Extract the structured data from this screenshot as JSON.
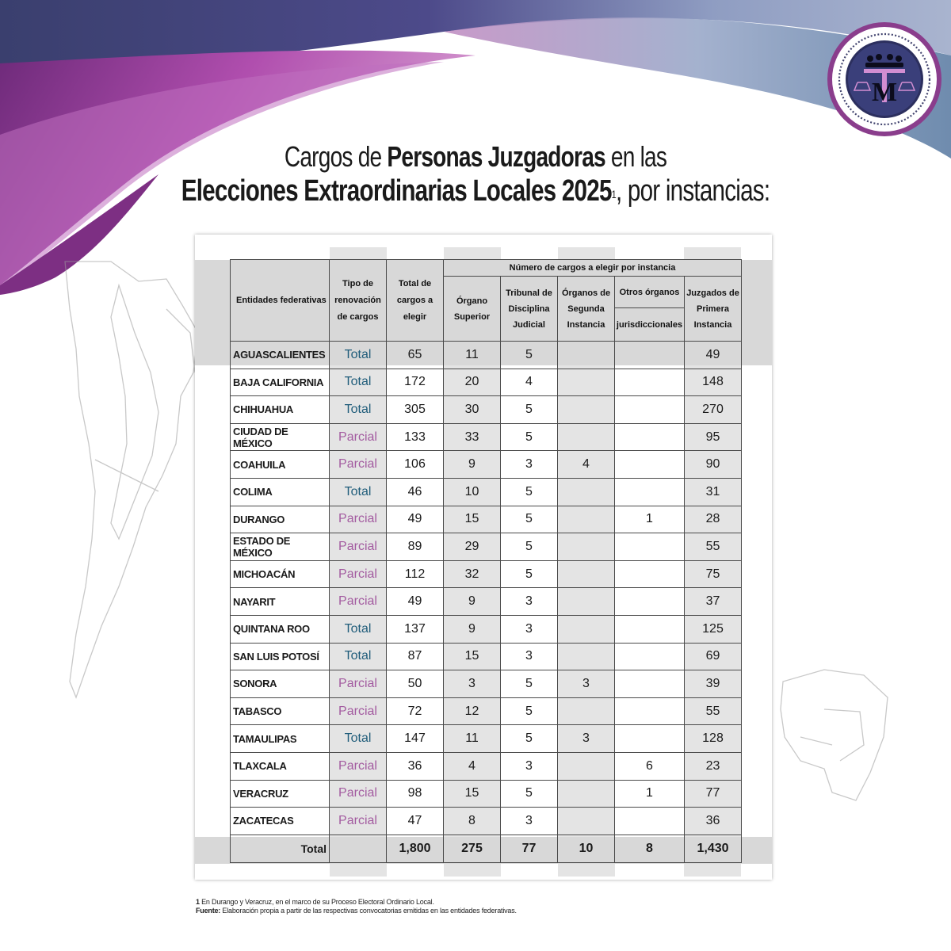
{
  "title": {
    "line1_pre": "Cargos de ",
    "line1_bold": "Personas Juzgadoras",
    "line1_post": " en las",
    "line2_bold": "Elecciones Extraordinarias Locales 2025",
    "line2_sup": "1",
    "line2_post": ", por instancias:"
  },
  "logo": {
    "ring_text": "Asociación de Magistradas y Magistrados Electorales Locales de los Estados Unidos Mexicanos",
    "monogram": "TM"
  },
  "colors": {
    "total": "#1f5c7a",
    "parcial": "#a35ba0",
    "purple": "#8a3d8c",
    "navy": "#2c2f5e"
  },
  "table": {
    "headers": {
      "entidades": "Entidades federativas",
      "tipo": "Tipo de renovación de cargos",
      "total": "Total de cargos a elegir",
      "group": "Número de cargos a elegir por instancia",
      "organo_superior": "Órgano Superior",
      "tribunal": "Tribunal de Disciplina Judicial",
      "segunda": "Órganos de Segunda Instancia",
      "otros": "Otros órganos",
      "otros_sub": "jurisdiccionales",
      "juzgados": "Juzgados de Primera Instancia"
    },
    "rows": [
      {
        "entidad": "AGUASCALIENTES",
        "tipo": "Total",
        "total": "65",
        "superior": "11",
        "tribunal": "5",
        "segunda": "",
        "otros": "",
        "juzgados": "49"
      },
      {
        "entidad": "BAJA CALIFORNIA",
        "tipo": "Total",
        "total": "172",
        "superior": "20",
        "tribunal": "4",
        "segunda": "",
        "otros": "",
        "juzgados": "148"
      },
      {
        "entidad": "CHIHUAHUA",
        "tipo": "Total",
        "total": "305",
        "superior": "30",
        "tribunal": "5",
        "segunda": "",
        "otros": "",
        "juzgados": "270"
      },
      {
        "entidad": "CIUDAD DE MÉXICO",
        "tipo": "Parcial",
        "total": "133",
        "superior": "33",
        "tribunal": "5",
        "segunda": "",
        "otros": "",
        "juzgados": "95"
      },
      {
        "entidad": "COAHUILA",
        "tipo": "Parcial",
        "total": "106",
        "superior": "9",
        "tribunal": "3",
        "segunda": "4",
        "otros": "",
        "juzgados": "90"
      },
      {
        "entidad": "COLIMA",
        "tipo": "Total",
        "total": "46",
        "superior": "10",
        "tribunal": "5",
        "segunda": "",
        "otros": "",
        "juzgados": "31"
      },
      {
        "entidad": "DURANGO",
        "tipo": "Parcial",
        "total": "49",
        "superior": "15",
        "tribunal": "5",
        "segunda": "",
        "otros": "1",
        "juzgados": "28"
      },
      {
        "entidad": "ESTADO DE MÉXICO",
        "tipo": "Parcial",
        "total": "89",
        "superior": "29",
        "tribunal": "5",
        "segunda": "",
        "otros": "",
        "juzgados": "55"
      },
      {
        "entidad": "MICHOACÁN",
        "tipo": "Parcial",
        "total": "112",
        "superior": "32",
        "tribunal": "5",
        "segunda": "",
        "otros": "",
        "juzgados": "75"
      },
      {
        "entidad": "NAYARIT",
        "tipo": "Parcial",
        "total": "49",
        "superior": "9",
        "tribunal": "3",
        "segunda": "",
        "otros": "",
        "juzgados": "37"
      },
      {
        "entidad": "QUINTANA ROO",
        "tipo": "Total",
        "total": "137",
        "superior": "9",
        "tribunal": "3",
        "segunda": "",
        "otros": "",
        "juzgados": "125"
      },
      {
        "entidad": "SAN LUIS POTOSÍ",
        "tipo": "Total",
        "total": "87",
        "superior": "15",
        "tribunal": "3",
        "segunda": "",
        "otros": "",
        "juzgados": "69"
      },
      {
        "entidad": "SONORA",
        "tipo": "Parcial",
        "total": "50",
        "superior": "3",
        "tribunal": "5",
        "segunda": "3",
        "otros": "",
        "juzgados": "39"
      },
      {
        "entidad": "TABASCO",
        "tipo": "Parcial",
        "total": "72",
        "superior": "12",
        "tribunal": "5",
        "segunda": "",
        "otros": "",
        "juzgados": "55"
      },
      {
        "entidad": "TAMAULIPAS",
        "tipo": "Total",
        "total": "147",
        "superior": "11",
        "tribunal": "5",
        "segunda": "3",
        "otros": "",
        "juzgados": "128"
      },
      {
        "entidad": "TLAXCALA",
        "tipo": "Parcial",
        "total": "36",
        "superior": "4",
        "tribunal": "3",
        "segunda": "",
        "otros": "6",
        "juzgados": "23"
      },
      {
        "entidad": "VERACRUZ",
        "tipo": "Parcial",
        "total": "98",
        "superior": "15",
        "tribunal": "5",
        "segunda": "",
        "otros": "1",
        "juzgados": "77"
      },
      {
        "entidad": "ZACATECAS",
        "tipo": "Parcial",
        "total": "47",
        "superior": "8",
        "tribunal": "3",
        "segunda": "",
        "otros": "",
        "juzgados": "36"
      }
    ],
    "totals": {
      "label": "Total",
      "total": "1,800",
      "superior": "275",
      "tribunal": "77",
      "segunda": "10",
      "otros": "8",
      "juzgados": "1,430"
    }
  },
  "footnotes": {
    "note_marker": "1",
    "note_text": " En Durango y Veracruz, en el marco de su Proceso Electoral Ordinario Local.",
    "source_label": "Fuente:",
    "source_text": " Elaboración propia a partir de las respectivas convocatorias emitidas en las entidades federativas."
  }
}
